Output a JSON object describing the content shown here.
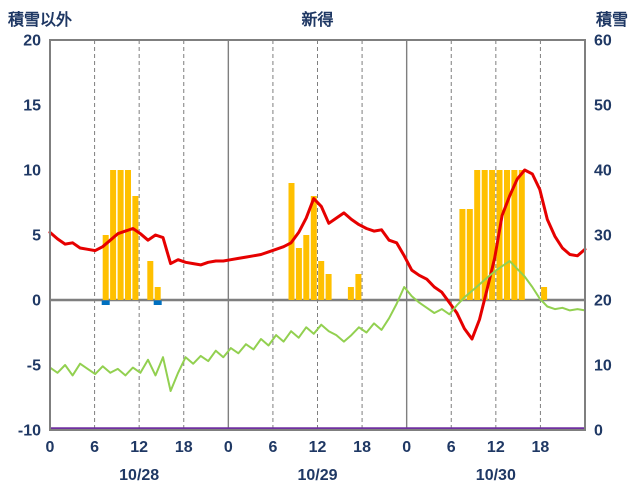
{
  "header": {
    "left_label": "積雪以外",
    "title": "新得",
    "right_label": "積雪"
  },
  "chart_data": {
    "type": "combo",
    "title": "新得",
    "x_axis": {
      "total_hours": 72,
      "tick_hours": [
        0,
        6,
        12,
        18,
        24,
        30,
        36,
        42,
        48,
        54,
        60,
        66
      ],
      "tick_labels": [
        "0",
        "6",
        "12",
        "18",
        "0",
        "6",
        "12",
        "18",
        "0",
        "6",
        "12",
        "18"
      ],
      "dashed_gridline_hours": [
        6,
        12,
        18,
        30,
        36,
        42,
        54,
        60,
        66
      ],
      "solid_gridline_hours": [
        24,
        48
      ],
      "day_labels": [
        {
          "label": "10/28",
          "center_hour": 12
        },
        {
          "label": "10/29",
          "center_hour": 36
        },
        {
          "label": "10/30",
          "center_hour": 60
        }
      ]
    },
    "left_axis": {
      "title": "積雪以外",
      "min": -10,
      "max": 20,
      "ticks": [
        20,
        15,
        10,
        5,
        0,
        -5,
        -10
      ]
    },
    "right_axis": {
      "title": "積雪",
      "min": 0,
      "max": 60,
      "ticks": [
        60,
        50,
        40,
        30,
        20,
        10,
        0
      ]
    },
    "colors": {
      "bar": "#FFC000",
      "red_line": "#E60000",
      "green_line": "#92D050",
      "purple_line": "#7030A0",
      "blue_marker": "#0070C0",
      "grid": "#7F7F7F",
      "text": "#1F3864"
    },
    "series": [
      {
        "name": "hourly-bars",
        "type": "bar",
        "axis": "left",
        "color_key": "bar",
        "points": [
          {
            "h": 7,
            "v": 5
          },
          {
            "h": 8,
            "v": 10
          },
          {
            "h": 9,
            "v": 10
          },
          {
            "h": 10,
            "v": 10
          },
          {
            "h": 11,
            "v": 8
          },
          {
            "h": 13,
            "v": 3
          },
          {
            "h": 14,
            "v": 1
          },
          {
            "h": 32,
            "v": 9
          },
          {
            "h": 33,
            "v": 4
          },
          {
            "h": 34,
            "v": 5
          },
          {
            "h": 35,
            "v": 8
          },
          {
            "h": 36,
            "v": 3
          },
          {
            "h": 37,
            "v": 2
          },
          {
            "h": 40,
            "v": 1
          },
          {
            "h": 41,
            "v": 2
          },
          {
            "h": 55,
            "v": 7
          },
          {
            "h": 56,
            "v": 7
          },
          {
            "h": 57,
            "v": 10
          },
          {
            "h": 58,
            "v": 10
          },
          {
            "h": 59,
            "v": 10
          },
          {
            "h": 60,
            "v": 10
          },
          {
            "h": 61,
            "v": 10
          },
          {
            "h": 62,
            "v": 10
          },
          {
            "h": 63,
            "v": 10
          },
          {
            "h": 66,
            "v": 1
          }
        ]
      },
      {
        "name": "red-line",
        "type": "line",
        "axis": "left",
        "color_key": "red_line",
        "stroke_width": 3,
        "values": [
          5.2,
          4.7,
          4.3,
          4.4,
          4.0,
          3.9,
          3.8,
          4.1,
          4.6,
          5.1,
          5.3,
          5.5,
          5.1,
          4.6,
          5.0,
          4.8,
          2.8,
          3.1,
          2.9,
          2.8,
          2.7,
          2.9,
          3.0,
          3.0,
          3.1,
          3.2,
          3.3,
          3.4,
          3.5,
          3.7,
          3.9,
          4.1,
          4.4,
          5.2,
          6.3,
          7.8,
          7.2,
          5.9,
          6.3,
          6.7,
          6.2,
          5.8,
          5.5,
          5.3,
          5.4,
          4.6,
          4.4,
          3.4,
          2.3,
          1.9,
          1.6,
          1.0,
          0.6,
          -0.2,
          -1.0,
          -2.2,
          -3.0,
          -1.5,
          0.8,
          3.2,
          6.5,
          8.0,
          9.3,
          10.0,
          9.7,
          8.5,
          6.2,
          4.9,
          4.0,
          3.5,
          3.4,
          3.9
        ]
      },
      {
        "name": "green-line",
        "type": "line",
        "axis": "left",
        "color_key": "green_line",
        "stroke_width": 2,
        "values": [
          -5.2,
          -5.6,
          -5.0,
          -5.8,
          -4.9,
          -5.3,
          -5.7,
          -5.1,
          -5.6,
          -5.3,
          -5.8,
          -5.2,
          -5.6,
          -4.6,
          -5.8,
          -4.4,
          -7.0,
          -5.6,
          -4.4,
          -4.9,
          -4.3,
          -4.7,
          -3.9,
          -4.4,
          -3.7,
          -4.1,
          -3.4,
          -3.8,
          -3.0,
          -3.5,
          -2.7,
          -3.2,
          -2.4,
          -2.9,
          -2.1,
          -2.6,
          -1.9,
          -2.4,
          -2.7,
          -3.2,
          -2.7,
          -2.1,
          -2.5,
          -1.8,
          -2.3,
          -1.4,
          -0.3,
          1.0,
          0.3,
          -0.2,
          -0.6,
          -1.0,
          -0.7,
          -1.1,
          -0.4,
          0.2,
          0.7,
          1.2,
          1.7,
          2.2,
          2.6,
          3.0,
          2.4,
          1.8,
          1.0,
          0.1,
          -0.5,
          -0.7,
          -0.6,
          -0.8,
          -0.7,
          -0.8
        ]
      },
      {
        "name": "purple-line",
        "type": "constant-line",
        "axis": "right",
        "color_key": "purple_line",
        "stroke_width": 2.5,
        "value": 0
      },
      {
        "name": "blue-markers",
        "type": "marker",
        "axis": "left",
        "color_key": "blue_marker",
        "points": [
          {
            "h": 7,
            "v": 0
          },
          {
            "h": 14,
            "v": 0
          }
        ]
      }
    ]
  }
}
